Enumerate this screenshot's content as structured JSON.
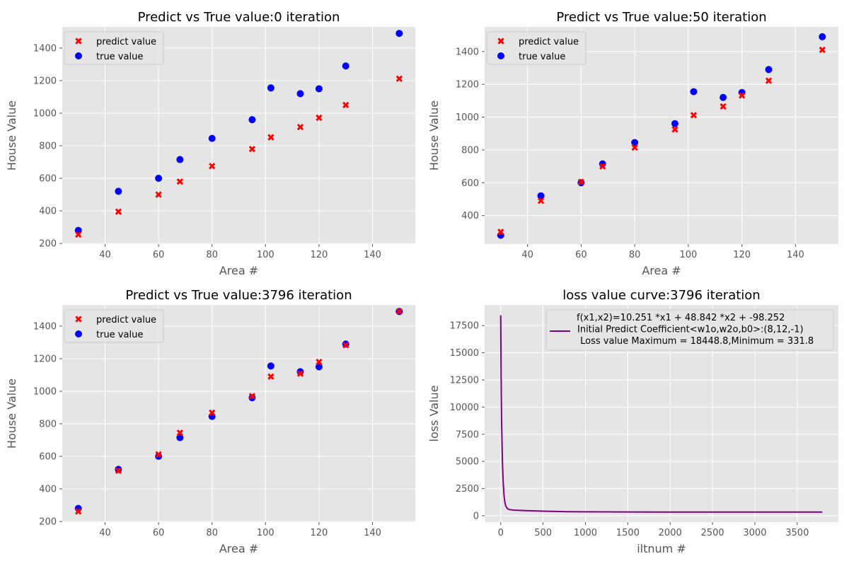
{
  "chart_data": [
    {
      "type": "scatter",
      "title": "Predict vs True value:0 iteration",
      "xlabel": "Area #",
      "ylabel": "House Value",
      "xlim": [
        24,
        156
      ],
      "ylim": [
        196,
        1530
      ],
      "xticks": [
        40,
        60,
        80,
        100,
        120,
        140
      ],
      "yticks": [
        200,
        400,
        600,
        800,
        1000,
        1200,
        1400
      ],
      "grid": true,
      "legend": "top-left",
      "x": [
        30,
        45,
        60,
        68,
        80,
        95,
        102,
        113,
        120,
        130,
        150
      ],
      "series": [
        {
          "name": "predict value",
          "marker": "x",
          "color": "#ff0000",
          "values": [
            255,
            395,
            500,
            580,
            675,
            780,
            852,
            915,
            972,
            1050,
            1212
          ]
        },
        {
          "name": "true value",
          "marker": "o",
          "color": "#0000ff",
          "values": [
            280,
            520,
            600,
            715,
            845,
            960,
            1155,
            1120,
            1150,
            1290,
            1490
          ]
        }
      ]
    },
    {
      "type": "scatter",
      "title": "Predict vs True value:50 iteration",
      "xlabel": "Area #",
      "ylabel": "House Value",
      "xlim": [
        24,
        156
      ],
      "ylim": [
        226,
        1550
      ],
      "xticks": [
        40,
        60,
        80,
        100,
        120,
        140
      ],
      "yticks": [
        400,
        600,
        800,
        1000,
        1200,
        1400
      ],
      "grid": true,
      "legend": "top-left",
      "x": [
        30,
        45,
        60,
        68,
        80,
        95,
        102,
        113,
        120,
        130,
        150
      ],
      "series": [
        {
          "name": "predict value",
          "marker": "x",
          "color": "#ff0000",
          "values": [
            300,
            490,
            605,
            700,
            815,
            925,
            1012,
            1065,
            1132,
            1222,
            1410
          ]
        },
        {
          "name": "true value",
          "marker": "o",
          "color": "#0000ff",
          "values": [
            280,
            520,
            600,
            715,
            845,
            960,
            1155,
            1120,
            1150,
            1290,
            1490
          ]
        }
      ]
    },
    {
      "type": "scatter",
      "title": "Predict vs True value:3796 iteration",
      "xlabel": "Area #",
      "ylabel": "House Value",
      "xlim": [
        24,
        156
      ],
      "ylim": [
        196,
        1530
      ],
      "xticks": [
        40,
        60,
        80,
        100,
        120,
        140
      ],
      "yticks": [
        200,
        400,
        600,
        800,
        1000,
        1200,
        1400
      ],
      "grid": true,
      "legend": "top-left",
      "x": [
        30,
        45,
        60,
        68,
        80,
        95,
        102,
        113,
        120,
        130,
        150
      ],
      "series": [
        {
          "name": "predict value",
          "marker": "x",
          "color": "#ff0000",
          "values": [
            262,
            512,
            612,
            745,
            868,
            970,
            1090,
            1108,
            1180,
            1283,
            1490
          ]
        },
        {
          "name": "true value",
          "marker": "o",
          "color": "#0000ff",
          "values": [
            280,
            520,
            600,
            715,
            845,
            960,
            1155,
            1120,
            1150,
            1290,
            1490
          ]
        }
      ]
    },
    {
      "type": "line",
      "title": "loss value curve:3796 iteration",
      "xlabel": "iltnum #",
      "ylabel": "loss Value",
      "xlim": [
        -190,
        3986
      ],
      "ylim": [
        -590,
        19400
      ],
      "xticks": [
        0,
        500,
        1000,
        1500,
        2000,
        2500,
        3000,
        3500
      ],
      "yticks": [
        0,
        2500,
        5000,
        7500,
        10000,
        12500,
        15000,
        17500
      ],
      "grid": true,
      "legend": "top-right",
      "series": [
        {
          "legend_lines": [
            "f(x1,x2)=10.251 *x1 + 48.842 *x2 + -98.252",
            "Initial Predict Coefficient<w1o,w2o,b0>:(8,12,-1)",
            " Loss value Maximum = 18448.8,Minimum = 331.8"
          ],
          "color": "#800080",
          "x": [
            0,
            5,
            10,
            20,
            30,
            40,
            50,
            60,
            70,
            80,
            100,
            150,
            200,
            300,
            500,
            800,
            1000,
            1500,
            2000,
            2500,
            3000,
            3500,
            3796
          ],
          "values": [
            18449,
            13000,
            9000,
            5000,
            3000,
            1800,
            1200,
            900,
            750,
            650,
            570,
            520,
            500,
            470,
            420,
            375,
            360,
            345,
            338,
            335,
            333,
            332,
            331.8
          ]
        }
      ]
    }
  ]
}
